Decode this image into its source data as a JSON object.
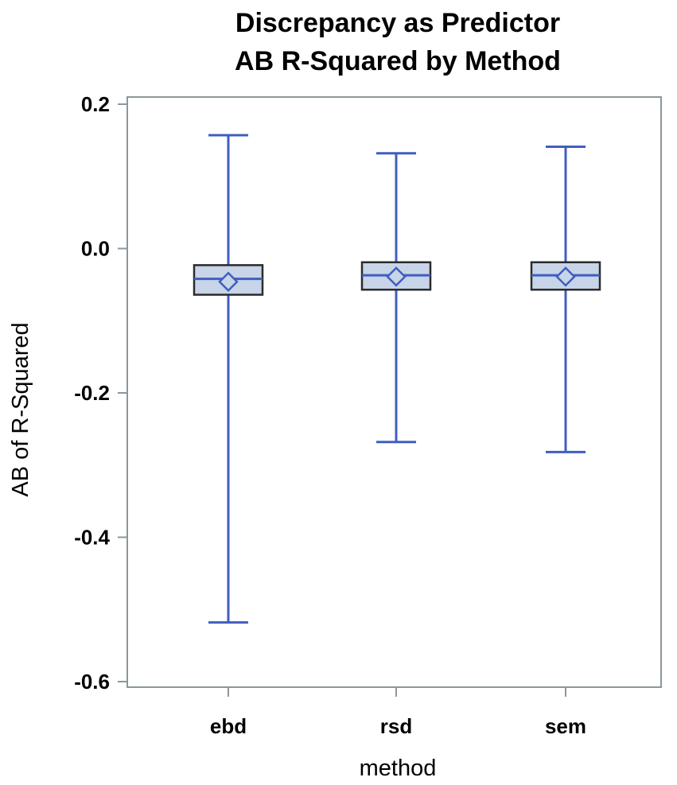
{
  "colors": {
    "whisker": "#3f5fbf",
    "box_fill": "#c8d4e8",
    "box_border": "#2b2b2b",
    "frame": "#8c969c"
  },
  "chart_data": {
    "type": "box",
    "title_lines": [
      "Discrepancy as Predictor",
      "AB R-Squared by Method"
    ],
    "xlabel": "method",
    "ylabel": "AB of R-Squared",
    "ylim": [
      -0.62,
      0.21
    ],
    "yticks": [
      0.2,
      0.0,
      -0.2,
      -0.4,
      -0.6
    ],
    "ytick_labels": [
      "0.2",
      "0.0",
      "-0.2",
      "-0.4",
      "-0.6"
    ],
    "categories": [
      "ebd",
      "rsd",
      "sem"
    ],
    "boxes": [
      {
        "category": "ebd",
        "min": -0.518,
        "q1": -0.064,
        "median": -0.042,
        "q3": -0.023,
        "max": 0.157,
        "mean": -0.046
      },
      {
        "category": "rsd",
        "min": -0.268,
        "q1": -0.057,
        "median": -0.037,
        "q3": -0.019,
        "max": 0.132,
        "mean": -0.039
      },
      {
        "category": "sem",
        "min": -0.282,
        "q1": -0.057,
        "median": -0.037,
        "q3": -0.019,
        "max": 0.141,
        "mean": -0.039
      }
    ],
    "grid": false,
    "legend": "none"
  }
}
